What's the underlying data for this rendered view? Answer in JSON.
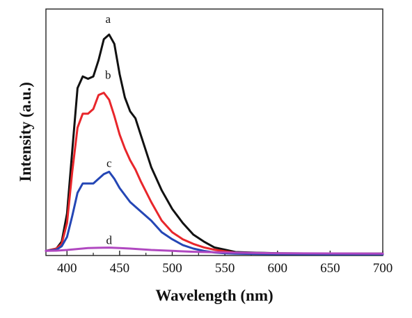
{
  "chart_data": {
    "type": "line",
    "title": "",
    "xlabel": "Wavelength (nm)",
    "ylabel": "Intensity (a.u.)",
    "xlim": [
      380,
      700
    ],
    "ylim": [
      0,
      1.06
    ],
    "xticks": [
      400,
      450,
      500,
      550,
      600,
      650,
      700
    ],
    "x_tick_labels": [
      "400",
      "450",
      "500",
      "550",
      "600",
      "650",
      "700"
    ],
    "yticks_shown": false,
    "grid": false,
    "legend": "none",
    "series": [
      {
        "name": "a",
        "color": "#111111",
        "label_at": [
          439,
          1.0
        ],
        "x": [
          380,
          390,
          395,
          400,
          405,
          410,
          415,
          420,
          425,
          430,
          435,
          440,
          445,
          450,
          455,
          460,
          465,
          470,
          480,
          490,
          500,
          510,
          520,
          530,
          540,
          550,
          560,
          580,
          600,
          650,
          700
        ],
        "y": [
          0.02,
          0.03,
          0.06,
          0.18,
          0.45,
          0.72,
          0.77,
          0.76,
          0.77,
          0.84,
          0.93,
          0.95,
          0.91,
          0.78,
          0.68,
          0.62,
          0.59,
          0.52,
          0.38,
          0.28,
          0.2,
          0.14,
          0.09,
          0.06,
          0.035,
          0.025,
          0.015,
          0.012,
          0.01,
          0.008,
          0.008
        ]
      },
      {
        "name": "b",
        "color": "#e8262b",
        "label_at": [
          439,
          0.76
        ],
        "x": [
          380,
          390,
          395,
          400,
          405,
          410,
          415,
          420,
          425,
          430,
          435,
          440,
          445,
          450,
          455,
          460,
          465,
          470,
          480,
          490,
          500,
          510,
          520,
          530,
          540,
          550,
          560,
          580,
          600,
          650,
          700
        ],
        "y": [
          0.02,
          0.03,
          0.05,
          0.14,
          0.36,
          0.55,
          0.61,
          0.61,
          0.63,
          0.69,
          0.7,
          0.67,
          0.6,
          0.52,
          0.46,
          0.41,
          0.37,
          0.32,
          0.23,
          0.15,
          0.1,
          0.07,
          0.05,
          0.035,
          0.025,
          0.018,
          0.012,
          0.01,
          0.008,
          0.007,
          0.006
        ]
      },
      {
        "name": "c",
        "color": "#2446b5",
        "label_at": [
          440,
          0.38
        ],
        "x": [
          380,
          390,
          395,
          400,
          405,
          410,
          415,
          420,
          425,
          430,
          435,
          440,
          445,
          450,
          455,
          460,
          465,
          470,
          480,
          490,
          500,
          510,
          520,
          530,
          540,
          550,
          560,
          580,
          600,
          650,
          700
        ],
        "y": [
          0.02,
          0.025,
          0.04,
          0.08,
          0.17,
          0.27,
          0.31,
          0.31,
          0.31,
          0.33,
          0.35,
          0.36,
          0.33,
          0.29,
          0.26,
          0.23,
          0.21,
          0.19,
          0.15,
          0.1,
          0.07,
          0.045,
          0.03,
          0.02,
          0.013,
          0.01,
          0.008,
          0.007,
          0.006,
          0.005,
          0.005
        ]
      },
      {
        "name": "d",
        "color": "#b048c0",
        "label_at": [
          440,
          0.05
        ],
        "x": [
          380,
          390,
          400,
          410,
          420,
          430,
          440,
          450,
          460,
          470,
          480,
          500,
          520,
          550,
          600,
          650,
          700
        ],
        "y": [
          0.02,
          0.021,
          0.024,
          0.028,
          0.032,
          0.033,
          0.034,
          0.032,
          0.03,
          0.027,
          0.024,
          0.02,
          0.016,
          0.013,
          0.01,
          0.009,
          0.008
        ]
      }
    ]
  }
}
